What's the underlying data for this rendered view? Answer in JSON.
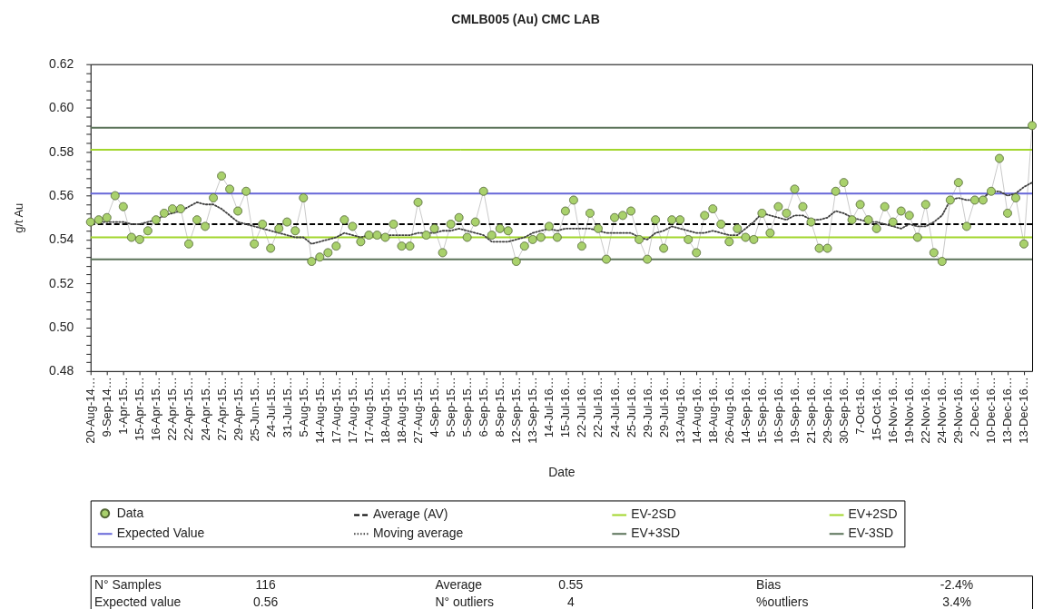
{
  "chart_data": {
    "type": "line",
    "title": "CMLB005 (Au) CMC LAB",
    "xlabel": "Date",
    "ylabel": "g/t Au",
    "categories": [
      "20-Aug-14…",
      null,
      "9-Sep-14…",
      null,
      "1-Apr-15…",
      null,
      "15-Apr-15…",
      null,
      "16-Apr-15…",
      null,
      "22-Apr-15…",
      null,
      "22-Apr-15…",
      null,
      "24-Apr-15…",
      null,
      "27-Apr-15…",
      null,
      "29-Apr-15…",
      null,
      "25-Jun-15…",
      null,
      "24-Jul-15…",
      null,
      "31-Jul-15…",
      null,
      "5-Aug-15…",
      null,
      "14-Aug-15…",
      null,
      "17-Aug-15…",
      null,
      "17-Aug-15…",
      null,
      "17-Aug-15…",
      null,
      "18-Aug-15…",
      null,
      "18-Aug-15…",
      null,
      "27-Aug-15…",
      null,
      "4-Sep-15…",
      null,
      "5-Sep-15…",
      null,
      "5-Sep-15…",
      null,
      "6-Sep-15…",
      null,
      "8-Sep-15…",
      null,
      "12-Sep-15…",
      null,
      "13-Sep-15…",
      null,
      "14-Jul-16…",
      null,
      "15-Jul-16…",
      null,
      "22-Jul-16…",
      null,
      "22-Jul-16…",
      null,
      "24-Jul-16…",
      null,
      "25-Jul-16…",
      null,
      "29-Jul-16…",
      null,
      "29-Jul-16…",
      null,
      "13-Aug-16…",
      null,
      "14-Aug-16…",
      null,
      "18-Aug-16…",
      null,
      "26-Aug-16…",
      null,
      "14-Sep-16…",
      null,
      "15-Sep-16…",
      null,
      "16-Sep-16…",
      null,
      "19-Sep-16…",
      null,
      "21-Sep-16…",
      null,
      "29-Sep-16…",
      null,
      "30-Sep-16…",
      null,
      "7-Oct-16…",
      null,
      "15-Oct-16…",
      null,
      "16-Nov-16…",
      null,
      "19-Nov-16…",
      null,
      "22-Nov-16…",
      null,
      "24-Nov-16…",
      null,
      "29-Nov-16…",
      null,
      "2-Dec-16…",
      null,
      "10-Dec-16…",
      null,
      "13-Dec-16…",
      null,
      "13-Dec-16…",
      null
    ],
    "ylim": [
      0.48,
      0.62
    ],
    "yticks": [
      0.48,
      {
        "value": 0.484,
        "label": null
      },
      {
        "value": 0.488,
        "label": null
      },
      {
        "value": 0.492,
        "label": null
      },
      {
        "value": 0.496,
        "label": null
      },
      {
        "value": 0.5,
        "label": "0.50"
      },
      {
        "value": 0.504,
        "label": null
      },
      {
        "value": 0.508,
        "label": null
      },
      {
        "value": 0.512,
        "label": null
      },
      {
        "value": 0.516,
        "label": null
      },
      0.52,
      {
        "value": 0.524,
        "label": null
      },
      {
        "value": 0.528,
        "label": null
      },
      {
        "value": 0.532,
        "label": null
      },
      {
        "value": 0.536,
        "label": null
      },
      0.54,
      {
        "value": 0.544,
        "label": null
      },
      {
        "value": 0.548,
        "label": null
      },
      {
        "value": 0.552,
        "label": null
      },
      {
        "value": 0.556,
        "label": null
      },
      0.56,
      {
        "value": 0.564,
        "label": null
      },
      {
        "value": 0.568,
        "label": null
      },
      {
        "value": 0.572,
        "label": null
      },
      {
        "value": 0.576,
        "label": null
      },
      0.58,
      {
        "value": 0.584,
        "label": null
      },
      {
        "value": 0.588,
        "label": null
      },
      {
        "value": 0.592,
        "label": null
      },
      {
        "value": 0.596,
        "label": null
      },
      {
        "value": 0.6,
        "label": "0.60"
      },
      {
        "value": 0.604,
        "label": null
      },
      {
        "value": 0.608,
        "label": null
      },
      {
        "value": 0.612,
        "label": null
      },
      {
        "value": 0.616,
        "label": null
      },
      0.62
    ],
    "series": [
      {
        "name": "Data",
        "marker": "circle",
        "color": "#a9d16c",
        "values": [
          0.548,
          0.549,
          0.55,
          0.56,
          0.555,
          0.541,
          0.54,
          0.544,
          0.549,
          0.552,
          0.554,
          0.554,
          0.538,
          0.549,
          0.546,
          0.559,
          0.569,
          0.563,
          0.553,
          0.562,
          0.538,
          0.547,
          0.536,
          0.545,
          0.548,
          0.544,
          0.559,
          0.53,
          0.532,
          0.534,
          0.537,
          0.549,
          0.546,
          0.539,
          0.542,
          0.542,
          0.541,
          0.547,
          0.537,
          0.537,
          0.557,
          0.542,
          0.545,
          0.534,
          0.547,
          0.55,
          0.541,
          0.548,
          0.562,
          0.542,
          0.545,
          0.544,
          0.53,
          0.537,
          0.54,
          0.541,
          0.546,
          0.541,
          0.553,
          0.558,
          0.537,
          0.552,
          0.545,
          0.531,
          0.55,
          0.551,
          0.553,
          0.54,
          0.531,
          0.549,
          0.536,
          0.549,
          0.549,
          0.54,
          0.534,
          0.551,
          0.554,
          0.547,
          0.539,
          0.545,
          0.541,
          0.54,
          0.552,
          0.543,
          0.555,
          0.552,
          0.563,
          0.555,
          0.548,
          0.536,
          0.536,
          0.562,
          0.566,
          0.549,
          0.556,
          0.549,
          0.545,
          0.555,
          0.548,
          0.553,
          0.551,
          0.541,
          0.556,
          0.534,
          0.53,
          0.558,
          0.566,
          0.546,
          0.558,
          0.558,
          0.562,
          0.577,
          0.552,
          0.559,
          0.538,
          0.592
        ]
      },
      {
        "name": "Moving average",
        "marker": "none",
        "line_style": "dotted",
        "color": "#404040",
        "values": [
          0.548,
          0.548,
          0.548,
          0.548,
          0.548,
          0.547,
          0.547,
          0.548,
          0.549,
          0.551,
          0.552,
          0.553,
          0.555,
          0.557,
          0.556,
          0.556,
          0.554,
          0.551,
          0.548,
          0.547,
          0.546,
          0.545,
          0.544,
          0.543,
          0.542,
          0.541,
          0.541,
          0.538,
          0.539,
          0.54,
          0.541,
          0.543,
          0.542,
          0.541,
          0.542,
          0.542,
          0.542,
          0.542,
          0.542,
          0.542,
          0.543,
          0.543,
          0.543,
          0.544,
          0.544,
          0.545,
          0.544,
          0.543,
          0.542,
          0.539,
          0.539,
          0.539,
          0.54,
          0.541,
          0.543,
          0.544,
          0.545,
          0.544,
          0.545,
          0.545,
          0.545,
          0.545,
          0.544,
          0.543,
          0.543,
          0.543,
          0.543,
          0.541,
          0.54,
          0.543,
          0.544,
          0.546,
          0.545,
          0.544,
          0.543,
          0.543,
          0.544,
          0.543,
          0.542,
          0.542,
          0.545,
          0.548,
          0.552,
          0.551,
          0.55,
          0.549,
          0.551,
          0.551,
          0.549,
          0.549,
          0.55,
          0.553,
          0.552,
          0.55,
          0.549,
          0.548,
          0.548,
          0.547,
          0.546,
          0.545,
          0.547,
          0.546,
          0.546,
          0.548,
          0.551,
          0.558,
          0.559,
          0.558,
          0.558,
          0.559,
          0.562,
          0.562,
          0.56,
          0.561,
          0.564,
          0.566
        ]
      }
    ],
    "ref_lines": [
      {
        "axis": "y",
        "value": 0.547,
        "label": "Average (AV)",
        "color": "#000000",
        "line_style": "dashed"
      },
      {
        "axis": "y",
        "value": 0.541,
        "label": "EV-2SD",
        "color": "#a2d62c"
      },
      {
        "axis": "y",
        "value": 0.581,
        "label": "EV+2SD",
        "color": "#a2d62c"
      },
      {
        "axis": "y",
        "value": 0.561,
        "label": "Expected Value",
        "color": "#6767d8"
      },
      {
        "axis": "y",
        "value": 0.591,
        "label": "EV+3SD",
        "color": "#5b7359"
      },
      {
        "axis": "y",
        "value": 0.531,
        "label": "EV-3SD",
        "color": "#5b7359"
      }
    ],
    "legend": "bottom",
    "annotations": [
      "N° Samples",
      "116",
      "Average",
      "0.55",
      "Bias",
      "-2.4%",
      "Expected value",
      "0.56",
      "N° outliers",
      "4",
      "%outliers",
      "3.4%"
    ]
  }
}
